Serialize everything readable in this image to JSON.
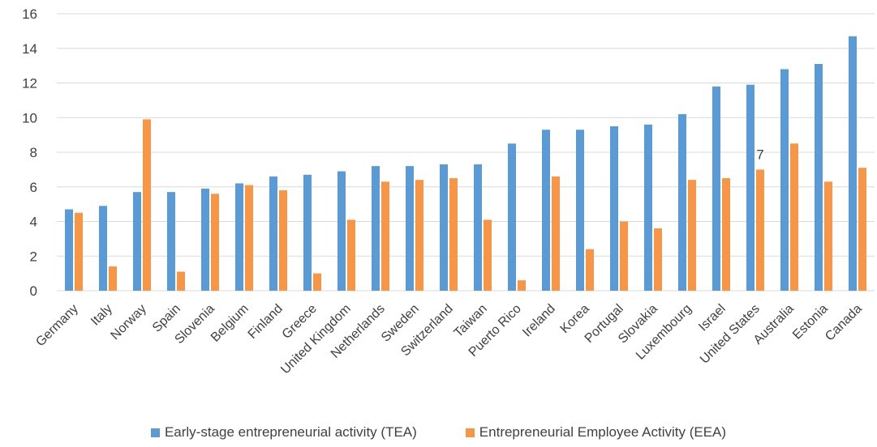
{
  "chart_data": {
    "type": "bar",
    "title": "",
    "xlabel": "",
    "ylabel": "",
    "ylim": [
      0,
      16
    ],
    "yticks": [
      0,
      2,
      4,
      6,
      8,
      10,
      12,
      14,
      16
    ],
    "grid": true,
    "legend_position": "bottom",
    "categories": [
      "Germany",
      "Italy",
      "Norway",
      "Spain",
      "Slovenia",
      "Belgium",
      "Finland",
      "Greece",
      "United Kingdom",
      "Netherlands",
      "Sweden",
      "Switzerland",
      "Taiwan",
      "Puerto Rico",
      "Ireland",
      "Korea",
      "Portugal",
      "Slovakia",
      "Luxembourg",
      "Israel",
      "United States",
      "Australia",
      "Estonia",
      "Canada"
    ],
    "series": [
      {
        "name": "Early-stage entrepreneurial activity (TEA)",
        "color": "#5b9bd5",
        "values": [
          4.7,
          4.9,
          5.7,
          5.7,
          5.9,
          6.2,
          6.6,
          6.7,
          6.9,
          7.2,
          7.2,
          7.3,
          7.3,
          8.5,
          9.3,
          9.3,
          9.5,
          9.6,
          10.2,
          11.8,
          11.9,
          12.8,
          13.1,
          14.7
        ]
      },
      {
        "name": "Entrepreneurial Employee Activity (EEA)",
        "color": "#f79646",
        "values": [
          4.5,
          1.4,
          9.9,
          1.1,
          5.6,
          6.1,
          5.8,
          1.0,
          4.1,
          6.3,
          6.4,
          6.5,
          4.1,
          0.6,
          6.6,
          2.4,
          4.0,
          3.6,
          6.4,
          6.5,
          7.0,
          8.5,
          6.3,
          7.1
        ]
      }
    ],
    "annotations": [
      {
        "text": "7",
        "category": "United States",
        "series": 1
      }
    ]
  }
}
